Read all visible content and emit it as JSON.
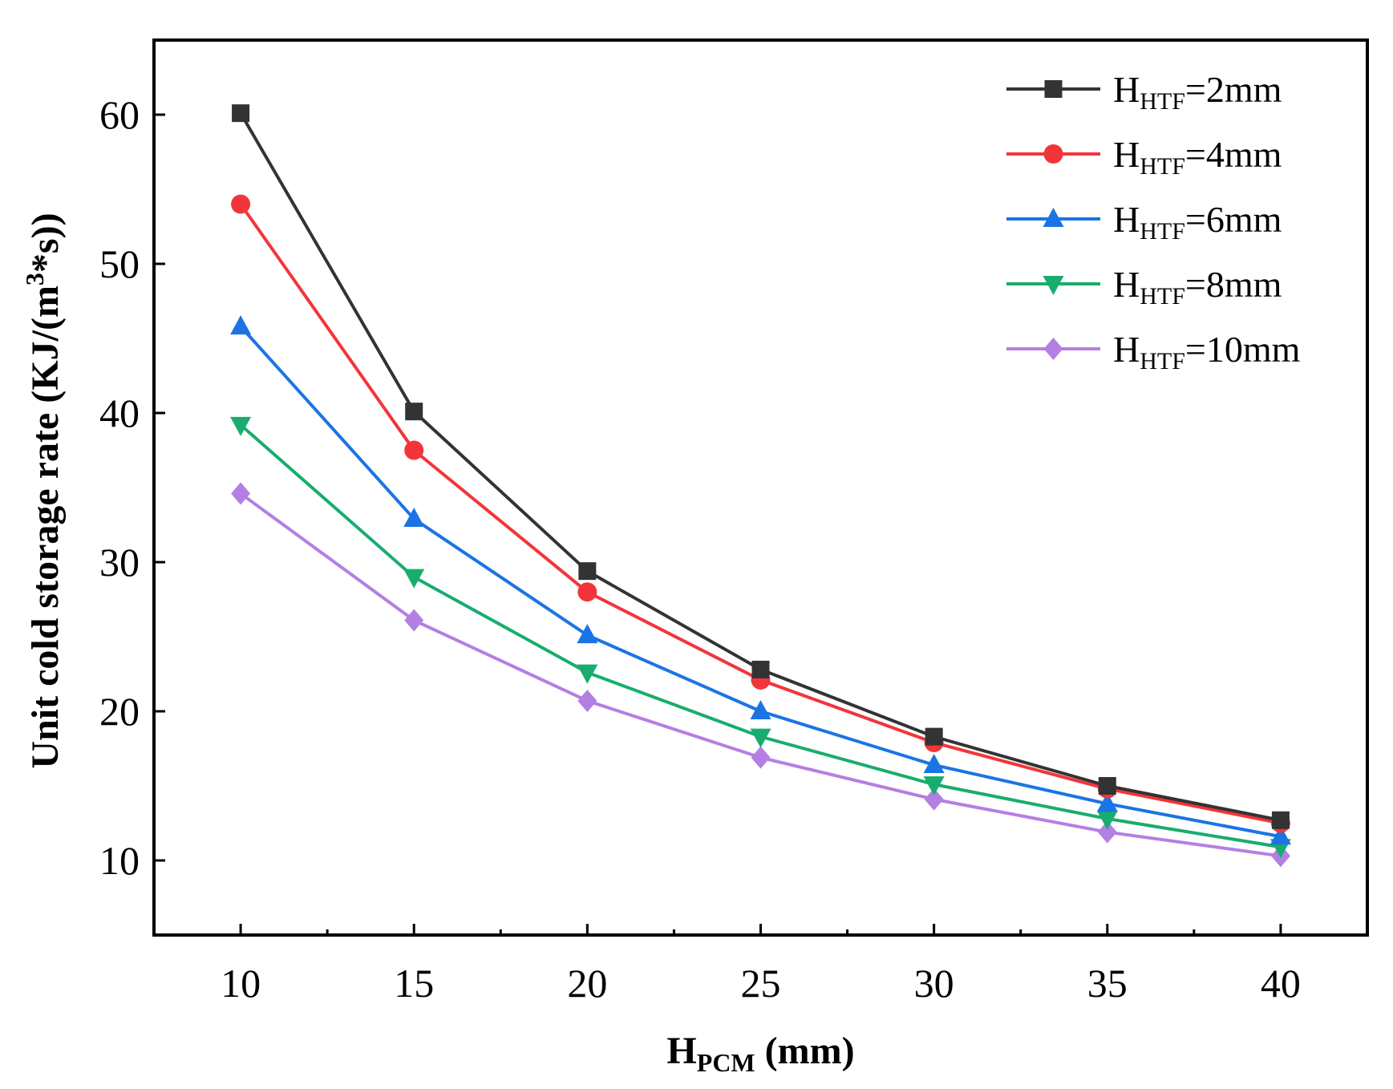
{
  "chart_data": {
    "type": "line",
    "title": "",
    "xlabel": {
      "main": "H",
      "sub": "PCM",
      "unit": " (mm)"
    },
    "ylabel": {
      "main": "Unit cold storage rate (KJ/(m",
      "sup": "3",
      "rest": "*s))"
    },
    "x": [
      10,
      15,
      20,
      25,
      30,
      35,
      40
    ],
    "xlim": [
      7.5,
      42.5
    ],
    "ylim": [
      5,
      65
    ],
    "xticks": [
      10,
      15,
      20,
      25,
      30,
      35,
      40
    ],
    "yticks": [
      10,
      20,
      30,
      40,
      50,
      60
    ],
    "legend_position": "top-right",
    "grid": false,
    "series": [
      {
        "name": "HHTF=2mm",
        "label_main": "H",
        "label_sub": "HTF",
        "label_rest": "=2mm",
        "color": "#333333",
        "marker": "square",
        "values": [
          60.1,
          40.1,
          29.4,
          22.8,
          18.3,
          15.0,
          12.7
        ]
      },
      {
        "name": "HHTF=4mm",
        "label_main": "H",
        "label_sub": "HTF",
        "label_rest": "=4mm",
        "color": "#f2353a",
        "marker": "circle",
        "values": [
          54.0,
          37.5,
          28.0,
          22.1,
          17.9,
          14.8,
          12.5
        ]
      },
      {
        "name": "HHTF=6mm",
        "label_main": "H",
        "label_sub": "HTF",
        "label_rest": "=6mm",
        "color": "#1b74e4",
        "marker": "triangle-up",
        "values": [
          45.8,
          32.9,
          25.1,
          20.0,
          16.4,
          13.8,
          11.6
        ]
      },
      {
        "name": "HHTF=8mm",
        "label_main": "H",
        "label_sub": "HTF",
        "label_rest": "=8mm",
        "color": "#18ad6e",
        "marker": "triangle-down",
        "values": [
          39.2,
          29.0,
          22.6,
          18.3,
          15.1,
          12.8,
          10.9
        ]
      },
      {
        "name": "HHTF=10mm",
        "label_main": "H",
        "label_sub": "HTF",
        "label_rest": "=10mm",
        "color": "#b47fe3",
        "marker": "diamond",
        "values": [
          34.6,
          26.1,
          20.7,
          16.9,
          14.1,
          11.9,
          10.3
        ]
      }
    ]
  }
}
